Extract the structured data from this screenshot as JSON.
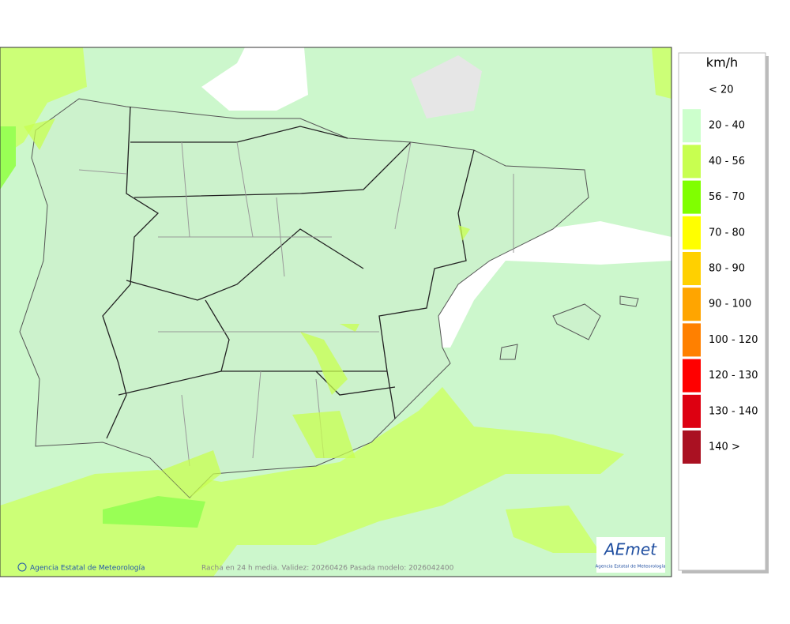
{
  "legend": {
    "title": "km/h",
    "items": [
      {
        "label": "< 20",
        "color": "#ffffff"
      },
      {
        "label": "20 - 40",
        "color": "#ccffcc"
      },
      {
        "label": "40 - 56",
        "color": "#c8ff50"
      },
      {
        "label": "56 - 70",
        "color": "#80ff00"
      },
      {
        "label": "70 - 80",
        "color": "#ffff00"
      },
      {
        "label": "80 - 90",
        "color": "#ffd000"
      },
      {
        "label": "90 - 100",
        "color": "#ffa500"
      },
      {
        "label": "100 - 120",
        "color": "#ff8000"
      },
      {
        "label": "120 - 130",
        "color": "#ff0000"
      },
      {
        "label": "130 - 140",
        "color": "#dd0011"
      },
      {
        "label": "140 >",
        "color": "#aa1122"
      }
    ]
  },
  "footer": {
    "credit": "Agencia Estatal de Meteorología",
    "caption": "Racha en 24 h media. Validez: 20260426 Pasada modelo: 2026042400"
  },
  "logo": {
    "brand": "AEmet",
    "subtitle": "Agencia Estatal de Meteorología"
  }
}
